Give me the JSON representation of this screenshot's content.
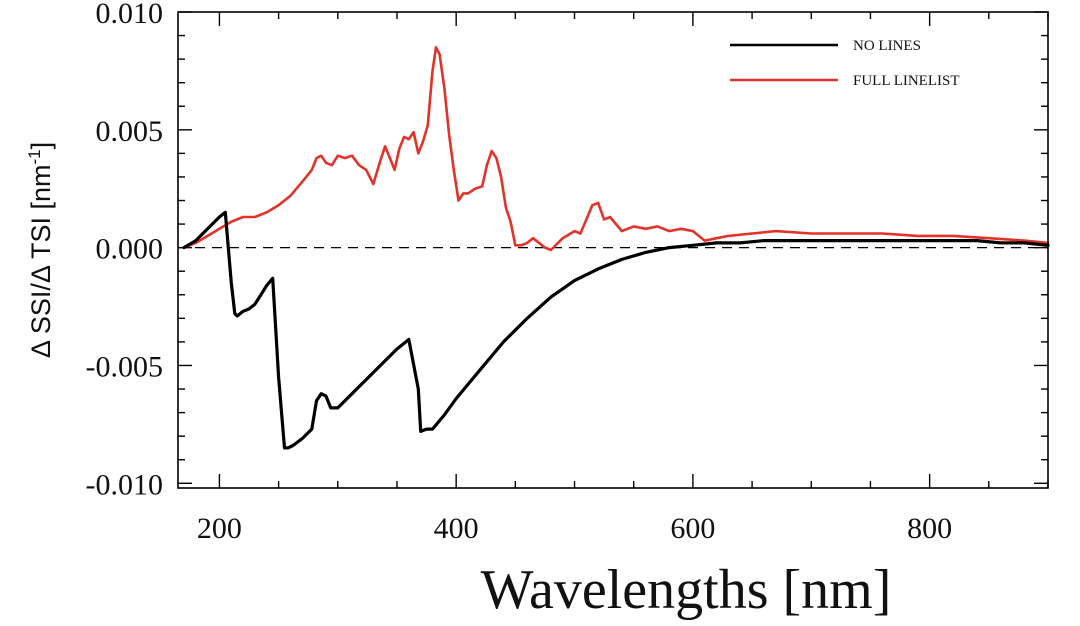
{
  "chart_data": {
    "type": "line",
    "xlabel": "Wavelengths [nm]",
    "ylabel": "Δ SSI/Δ TSI [nm",
    "ylabel_superscript": "-1",
    "ylabel_suffix": "]",
    "xlim": [
      165,
      900
    ],
    "ylim": [
      -0.0102,
      0.01
    ],
    "x_ticks": [
      {
        "value": 200,
        "label": "200"
      },
      {
        "value": 400,
        "label": "400"
      },
      {
        "value": 600,
        "label": "600"
      },
      {
        "value": 800,
        "label": "800"
      }
    ],
    "y_ticks": [
      {
        "value": 0.01,
        "label": "0.010"
      },
      {
        "value": 0.005,
        "label": "0.005"
      },
      {
        "value": 0.0,
        "label": "0.000"
      },
      {
        "value": -0.005,
        "label": "-0.005"
      },
      {
        "value": -0.01,
        "label": "-0.010"
      }
    ],
    "reference_line": {
      "y": 0.0,
      "style": "dashed"
    },
    "legend_position": "top-right",
    "series": [
      {
        "name": "NO LINES",
        "color": "#000000",
        "x": [
          170,
          180,
          190,
          200,
          205,
          210,
          213,
          215,
          220,
          225,
          230,
          235,
          240,
          245,
          250,
          255,
          258,
          262,
          270,
          278,
          282,
          286,
          290,
          294,
          300,
          310,
          320,
          330,
          340,
          350,
          360,
          368,
          370,
          375,
          380,
          390,
          400,
          420,
          440,
          460,
          480,
          500,
          520,
          540,
          560,
          580,
          600,
          620,
          640,
          660,
          680,
          700,
          720,
          740,
          760,
          780,
          800,
          820,
          840,
          860,
          880,
          900
        ],
        "y": [
          0.0,
          0.0003,
          0.0008,
          0.0013,
          0.0015,
          -0.0015,
          -0.0028,
          -0.0029,
          -0.0027,
          -0.0026,
          -0.0024,
          -0.002,
          -0.0016,
          -0.0013,
          -0.0055,
          -0.0085,
          -0.0085,
          -0.0084,
          -0.0081,
          -0.0077,
          -0.0065,
          -0.0062,
          -0.0063,
          -0.0068,
          -0.0068,
          -0.0063,
          -0.0058,
          -0.0053,
          -0.0048,
          -0.0043,
          -0.0039,
          -0.006,
          -0.0078,
          -0.0077,
          -0.0077,
          -0.0071,
          -0.0064,
          -0.0052,
          -0.004,
          -0.003,
          -0.0021,
          -0.0014,
          -0.0009,
          -0.0005,
          -0.0002,
          0.0,
          0.0001,
          0.0002,
          0.0002,
          0.0003,
          0.0003,
          0.0003,
          0.0003,
          0.0003,
          0.0003,
          0.0003,
          0.0003,
          0.0003,
          0.0003,
          0.0002,
          0.0002,
          0.0001
        ]
      },
      {
        "name": "FULL LINELIST",
        "color": "#e2332b",
        "x": [
          170,
          180,
          190,
          200,
          210,
          220,
          230,
          240,
          250,
          260,
          270,
          278,
          282,
          286,
          290,
          295,
          300,
          306,
          312,
          318,
          324,
          330,
          336,
          340,
          344,
          348,
          352,
          356,
          360,
          364,
          368,
          372,
          376,
          380,
          383,
          386,
          390,
          394,
          398,
          402,
          406,
          410,
          416,
          422,
          426,
          430,
          434,
          438,
          442,
          446,
          450,
          455,
          460,
          465,
          470,
          475,
          480,
          490,
          500,
          505,
          510,
          515,
          520,
          525,
          530,
          540,
          550,
          560,
          570,
          580,
          590,
          600,
          610,
          620,
          630,
          650,
          670,
          700,
          730,
          760,
          790,
          820,
          850,
          880,
          900
        ],
        "y": [
          0.0,
          0.0002,
          0.0005,
          0.0008,
          0.0011,
          0.0013,
          0.0013,
          0.0015,
          0.0018,
          0.0022,
          0.0028,
          0.0033,
          0.0038,
          0.0039,
          0.0036,
          0.0035,
          0.0039,
          0.0038,
          0.0039,
          0.0035,
          0.0033,
          0.0027,
          0.0037,
          0.0043,
          0.0038,
          0.0033,
          0.0042,
          0.0047,
          0.0046,
          0.0049,
          0.004,
          0.0045,
          0.0052,
          0.0075,
          0.0085,
          0.0082,
          0.0068,
          0.0048,
          0.0033,
          0.002,
          0.0023,
          0.0023,
          0.0025,
          0.0026,
          0.0035,
          0.0041,
          0.0038,
          0.003,
          0.0017,
          0.0011,
          0.0001,
          0.0001,
          0.0002,
          0.0004,
          0.0002,
          0.0,
          -0.0001,
          0.0004,
          0.0007,
          0.0006,
          0.0012,
          0.0018,
          0.0019,
          0.0012,
          0.0013,
          0.0007,
          0.0009,
          0.0008,
          0.0009,
          0.0007,
          0.0008,
          0.0007,
          0.0003,
          0.0004,
          0.0005,
          0.0006,
          0.0007,
          0.0006,
          0.0006,
          0.0006,
          0.0005,
          0.0005,
          0.0004,
          0.0003,
          0.0002
        ]
      }
    ]
  }
}
